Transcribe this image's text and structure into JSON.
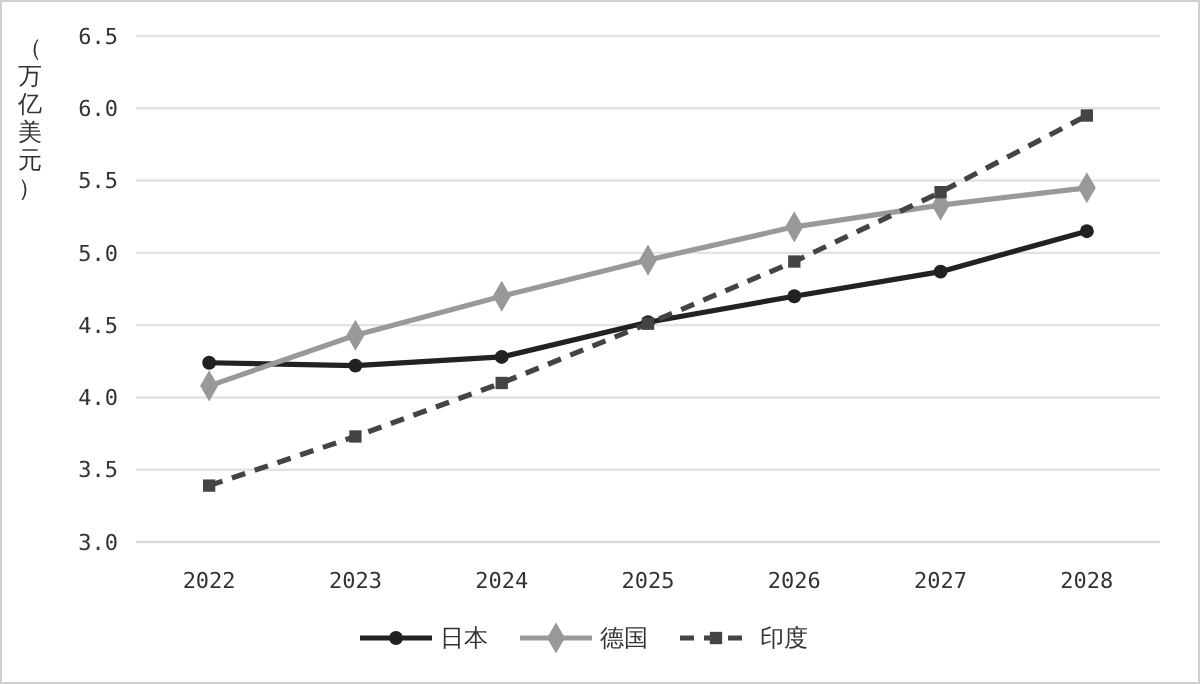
{
  "chart_data": {
    "type": "line",
    "ylabel": "（万亿美元）",
    "categories": [
      "2022",
      "2023",
      "2024",
      "2025",
      "2026",
      "2027",
      "2028"
    ],
    "ylim": [
      3.0,
      6.5
    ],
    "yticks": [
      {
        "value": 3.0,
        "label": "3.0"
      },
      {
        "value": 3.5,
        "label": "3.5"
      },
      {
        "value": 4.0,
        "label": "4.0"
      },
      {
        "value": 4.5,
        "label": "4.5"
      },
      {
        "value": 5.0,
        "label": "5.0"
      },
      {
        "value": 5.5,
        "label": "5.5"
      },
      {
        "value": 6.0,
        "label": "6.0"
      },
      {
        "value": 6.5,
        "label": "6.5"
      }
    ],
    "grid": "y",
    "legend": "bottom",
    "series": [
      {
        "name": "日本",
        "color": "#222222",
        "marker": "circle",
        "line_style": "solid",
        "values": [
          4.24,
          4.22,
          4.28,
          4.52,
          4.7,
          4.87,
          5.15
        ]
      },
      {
        "name": "德国",
        "color": "#999999",
        "marker": "diamond",
        "line_style": "solid",
        "values": [
          4.08,
          4.43,
          4.7,
          4.95,
          5.18,
          5.33,
          5.45
        ]
      },
      {
        "name": "印度",
        "color": "#444444",
        "marker": "square",
        "line_style": "dashed",
        "values": [
          3.39,
          3.73,
          4.1,
          4.51,
          4.94,
          5.42,
          5.95
        ]
      }
    ]
  }
}
